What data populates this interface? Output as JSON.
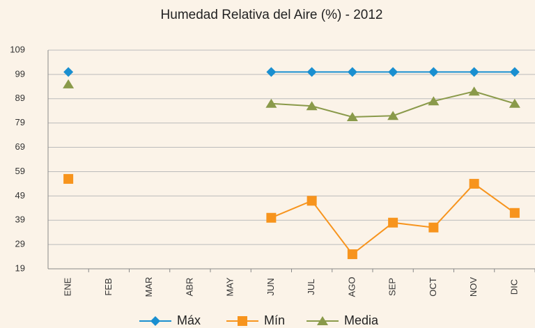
{
  "chart_data": {
    "type": "line",
    "title": "Humedad Relativa del Aire (%) - 2012",
    "categories": [
      "ENE",
      "FEB",
      "MAR",
      "ABR",
      "MAY",
      "JUN",
      "JUL",
      "AGO",
      "SEP",
      "OCT",
      "NOV",
      "DIC"
    ],
    "series": [
      {
        "name": "Máx",
        "color": "#1a8fd0",
        "marker": "diamond",
        "values": [
          100,
          null,
          null,
          null,
          null,
          100,
          100,
          100,
          100,
          100,
          100,
          100
        ]
      },
      {
        "name": "Mín",
        "color": "#f7941d",
        "marker": "square",
        "values": [
          56,
          null,
          null,
          null,
          null,
          40,
          47,
          25,
          38,
          36,
          54,
          42
        ]
      },
      {
        "name": "Media",
        "color": "#8a9a4a",
        "marker": "triangle",
        "values": [
          95,
          null,
          null,
          null,
          null,
          87,
          86,
          81.5,
          82,
          88,
          92,
          87
        ]
      }
    ],
    "ylim": [
      19,
      109
    ],
    "yticks": [
      19,
      29,
      39,
      49,
      59,
      69,
      79,
      89,
      99,
      109
    ],
    "grid": true
  }
}
